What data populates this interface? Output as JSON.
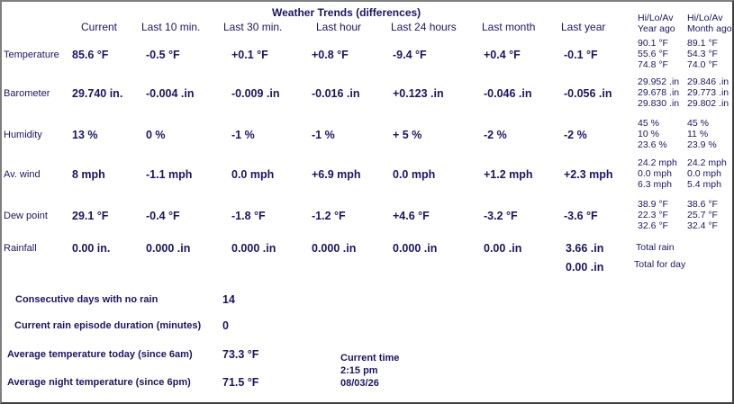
{
  "title": "Weather Trends (differences)",
  "columns": [
    "Current",
    "Last 10 min.",
    "Last 30 min.",
    "Last hour",
    "Last 24 hours",
    "Last month",
    "Last year"
  ],
  "hilo_year_header": [
    "Hi/Lo/Av",
    "Year ago"
  ],
  "hilo_month_header": [
    "Hi/Lo/Av",
    "Month ago"
  ],
  "rows": [
    {
      "label": "Temperature",
      "values": [
        "85.6 °F",
        "-0.5 °F",
        "+0.1 °F",
        "+0.8 °F",
        "-9.4 °F",
        "+0.4 °F",
        "-0.1 °F"
      ],
      "year_ago": [
        "90.1 °F",
        "55.6 °F",
        "74.8 °F"
      ],
      "month_ago": [
        "89.1 °F",
        "54.3 °F",
        "74.0 °F"
      ]
    },
    {
      "label": "Barometer",
      "values": [
        "29.740 in.",
        "-0.004 .in",
        "-0.009 .in",
        "-0.016 .in",
        "+0.123 .in",
        "-0.046 .in",
        "-0.056 .in"
      ],
      "year_ago": [
        "29.952 .in",
        "29.678 .in",
        "29.830 .in"
      ],
      "month_ago": [
        "29.846 .in",
        "29.773 .in",
        "29.802 .in"
      ]
    },
    {
      "label": "Humidity",
      "values": [
        "13 %",
        "0 %",
        "-1 %",
        "-1 %",
        "+ 5 %",
        "-2 %",
        "-2 %"
      ],
      "year_ago": [
        "45 %",
        "10 %",
        "23.6 %"
      ],
      "month_ago": [
        "45 %",
        "11 %",
        "23.9 %"
      ]
    },
    {
      "label": "Av. wind",
      "values": [
        "8 mph",
        "-1.1 mph",
        "0.0 mph",
        "+6.9 mph",
        "0.0 mph",
        "+1.2 mph",
        "+2.3 mph"
      ],
      "year_ago": [
        "24.2 mph",
        "0.0 mph",
        "6.3 mph"
      ],
      "month_ago": [
        "24.2 mph",
        "0.0 mph",
        "5.4 mph"
      ]
    },
    {
      "label": "Dew point",
      "values": [
        "29.1 °F",
        "-0.4 °F",
        "-1.8 °F",
        "-1.2 °F",
        "+4.6 °F",
        "-3.2 °F",
        "-3.6 °F"
      ],
      "year_ago": [
        "38.9 °F",
        "22.3 °F",
        "32.6 °F"
      ],
      "month_ago": [
        "38.6 °F",
        "25.7 °F",
        "32.4 °F"
      ]
    }
  ],
  "rainfall": {
    "label": "Rainfall",
    "values": [
      "0.00 in.",
      "0.000 .in",
      "0.000 .in",
      "0.000 .in",
      "0.000 .in",
      "0.00 .in",
      "3.66 .in"
    ],
    "total_rain": "Total rain",
    "day_value": "0.00 .in",
    "total_for_day": "Total for day"
  },
  "summary": [
    {
      "label": "Consecutive days with no rain",
      "value": "14"
    },
    {
      "label": "Current rain episode duration (minutes)",
      "value": "0"
    },
    {
      "label": "Average temperature today (since 6am)",
      "value": "73.3 °F"
    },
    {
      "label": "Average night temperature (since 6pm)",
      "value": "71.5 °F"
    }
  ],
  "current_time": {
    "label": "Current time",
    "time": "2:15 pm",
    "date": "08/03/26"
  }
}
